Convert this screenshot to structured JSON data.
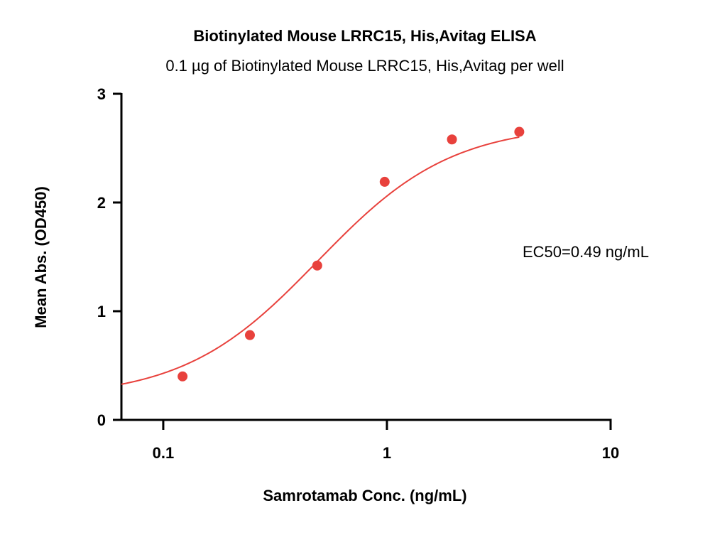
{
  "chart_data": {
    "type": "scatter",
    "title": "Biotinylated Mouse LRRC15, His,Avitag ELISA",
    "subtitle": "0.1 µg of Biotinylated Mouse LRRC15, His,Avitag per well",
    "xlabel": "Samrotamab Conc. (ng/mL)",
    "ylabel": "Mean Abs. (OD450)",
    "x_scale": "log",
    "xlim": [
      0.065,
      10
    ],
    "ylim": [
      0,
      3
    ],
    "x_ticks": [
      0.1,
      1,
      10
    ],
    "x_tick_labels": [
      "0.1",
      "1",
      "10"
    ],
    "y_ticks": [
      0,
      1,
      2,
      3
    ],
    "y_tick_labels": [
      "0",
      "1",
      "2",
      "3"
    ],
    "grid": false,
    "series": [
      {
        "color": "#e8413c",
        "x": [
          0.122,
          0.244,
          0.488,
          0.977,
          1.953,
          3.906
        ],
        "y": [
          0.4,
          0.78,
          1.42,
          2.19,
          2.58,
          2.65
        ],
        "fit": {
          "model": "4PL",
          "bottom": 0.2,
          "top": 2.72,
          "ec50": 0.49,
          "hill": 1.45
        }
      }
    ],
    "annotation": "EC50=0.49 ng/mL"
  }
}
